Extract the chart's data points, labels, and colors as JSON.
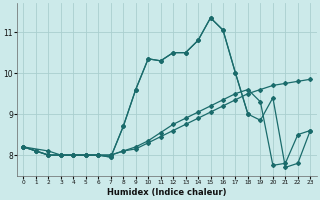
{
  "xlabel": "Humidex (Indice chaleur)",
  "bg_color": "#cceaea",
  "grid_color": "#aacfcf",
  "line_color": "#1a6b6b",
  "xlim": [
    -0.5,
    23.5
  ],
  "ylim": [
    7.5,
    11.7
  ],
  "xticks": [
    0,
    1,
    2,
    3,
    4,
    5,
    6,
    7,
    8,
    9,
    10,
    11,
    12,
    13,
    14,
    15,
    16,
    17,
    18,
    19,
    20,
    21,
    22,
    23
  ],
  "yticks": [
    8,
    9,
    10,
    11
  ],
  "series": [
    {
      "x": [
        0,
        1,
        2,
        3,
        4,
        5,
        6,
        7,
        8,
        9,
        10,
        11,
        12,
        13,
        14,
        15,
        16,
        17,
        18,
        19,
        20,
        21,
        22,
        23
      ],
      "y": [
        8.2,
        8.1,
        8.0,
        8.0,
        8.0,
        8.0,
        8.0,
        8.0,
        8.1,
        8.15,
        8.3,
        8.45,
        8.6,
        8.75,
        8.9,
        9.05,
        9.2,
        9.35,
        9.5,
        9.6,
        9.7,
        9.75,
        9.8,
        9.85
      ]
    },
    {
      "x": [
        0,
        1,
        2,
        3,
        4,
        5,
        6,
        7,
        8,
        9,
        10,
        11,
        12,
        13,
        14,
        15,
        16,
        17,
        18,
        19,
        20,
        21,
        22,
        23
      ],
      "y": [
        8.2,
        8.1,
        8.0,
        8.0,
        8.0,
        8.0,
        8.0,
        8.0,
        8.1,
        8.2,
        8.35,
        8.55,
        8.75,
        8.9,
        9.05,
        9.2,
        9.35,
        9.5,
        9.6,
        9.3,
        7.75,
        7.8,
        8.5,
        8.6
      ]
    },
    {
      "x": [
        0,
        1,
        2,
        3,
        4,
        5,
        6,
        7,
        8,
        9,
        10,
        11,
        12,
        13,
        14,
        15,
        16,
        17,
        18,
        19,
        20,
        21,
        22,
        23
      ],
      "y": [
        8.2,
        8.1,
        8.0,
        8.0,
        8.0,
        8.0,
        8.0,
        7.95,
        8.7,
        9.6,
        10.35,
        10.3,
        10.5,
        10.5,
        10.8,
        11.35,
        11.05,
        10.0,
        9.0,
        8.85,
        9.4,
        7.7,
        7.8,
        8.6
      ]
    },
    {
      "x": [
        0,
        2,
        3,
        4,
        5,
        6,
        7,
        8,
        9,
        10,
        11,
        12,
        13,
        14,
        15,
        16,
        17,
        18
      ],
      "y": [
        8.2,
        8.1,
        8.0,
        8.0,
        8.0,
        8.0,
        7.95,
        8.7,
        9.6,
        10.35,
        10.3,
        10.5,
        10.5,
        10.8,
        11.35,
        11.05,
        10.0,
        9.0
      ]
    }
  ],
  "marker": "D",
  "markersize": 2.0,
  "linewidth": 0.9
}
